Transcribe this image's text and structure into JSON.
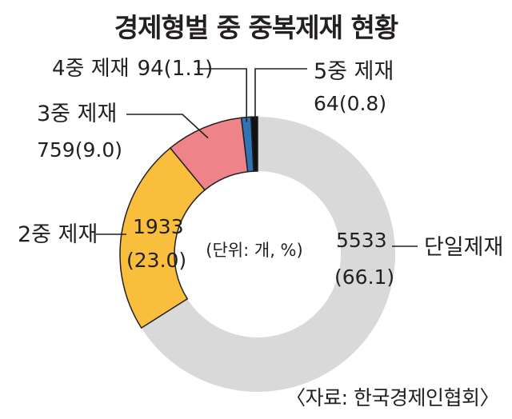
{
  "title": "경제형벌 중 중복제재 현황",
  "source": "〈자료: 한국경제인협회〉",
  "chart_data": {
    "type": "pie",
    "title": "경제형벌 중 중복제재 현황",
    "unit_note": "(단위: 개, %)",
    "categories": [
      "단일제재",
      "2중 제재",
      "3중 제재",
      "4중 제재",
      "5중 제재"
    ],
    "values": [
      5533,
      1933,
      759,
      94,
      64
    ],
    "percent": [
      66.1,
      23.0,
      9.0,
      1.1,
      0.8
    ],
    "value_labels": [
      "5533",
      "1933",
      "759",
      "94",
      "64"
    ],
    "percent_labels": [
      "(66.1)",
      "(23.0)",
      "(9.0)",
      "(1.1)",
      "(0.8)"
    ],
    "colors": [
      "#d9d9d9",
      "#f8be3c",
      "#ee8389",
      "#2f74b5",
      "#111111"
    ],
    "donut": true
  }
}
